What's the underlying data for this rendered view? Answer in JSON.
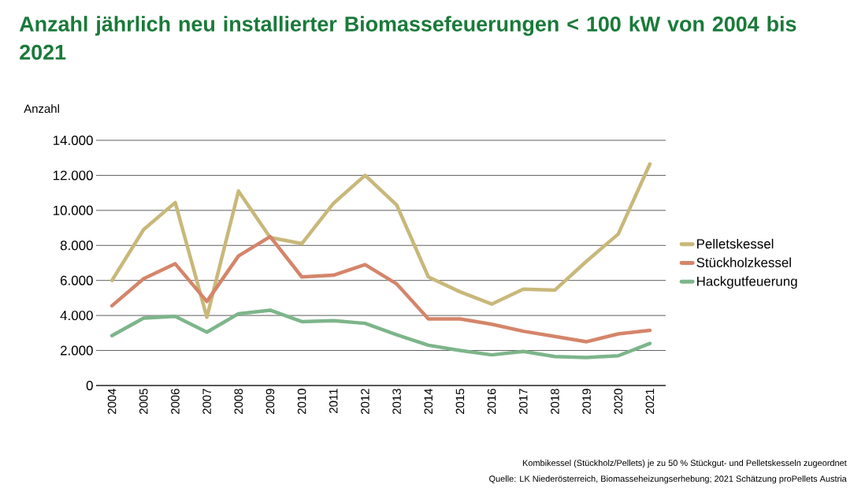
{
  "chart_data": {
    "type": "line",
    "title": "Anzahl jährlich neu installierter Biomassefeuerungen < 100 kW von 2004 bis 2021",
    "ylabel": "Anzahl",
    "categories": [
      "2004",
      "2005",
      "2006",
      "2007",
      "2008",
      "2009",
      "2010",
      "2011",
      "2012",
      "2013",
      "2014",
      "2015",
      "2016",
      "2017",
      "2018",
      "2019",
      "2020",
      "2021"
    ],
    "series": [
      {
        "name": "Pelletskessel",
        "color": "#c8b87a",
        "values": [
          6000,
          8900,
          10450,
          3900,
          11100,
          8450,
          8100,
          10400,
          12000,
          10300,
          6200,
          5350,
          4650,
          5500,
          5450,
          7100,
          8650,
          12650
        ]
      },
      {
        "name": "Stückholzkessel",
        "color": "#d4856a",
        "values": [
          4550,
          6100,
          6950,
          4800,
          7400,
          8500,
          6200,
          6300,
          6900,
          5800,
          3800,
          3800,
          3500,
          3100,
          2800,
          2500,
          2950,
          3150
        ]
      },
      {
        "name": "Hackgutfeuerung",
        "color": "#7db58a",
        "values": [
          2850,
          3850,
          3950,
          3050,
          4100,
          4300,
          3650,
          3700,
          3550,
          2900,
          2300,
          2000,
          1750,
          1950,
          1650,
          1600,
          1700,
          2400
        ]
      }
    ],
    "ylim": [
      0,
      14000
    ],
    "yticks": [
      {
        "value": 0,
        "label": "0"
      },
      {
        "value": 2000,
        "label": "2.000"
      },
      {
        "value": 4000,
        "label": "4.000"
      },
      {
        "value": 6000,
        "label": "6.000"
      },
      {
        "value": 8000,
        "label": "8.000"
      },
      {
        "value": 10000,
        "label": "10.000"
      },
      {
        "value": 12000,
        "label": "12.000"
      },
      {
        "value": 14000,
        "label": "14.000"
      }
    ],
    "grid": "y",
    "legend": "right",
    "marker": "none",
    "line_style": "solid",
    "annotations": [
      "Kombikessel (Stückholz/Pellets) je zu 50 % Stückgut- und  Pelletskesseln zugeordnet",
      "Quelle: LK Niederösterreich,  Biomasseheizungserhebung; 2021 Schätzung proPellets Austria"
    ]
  }
}
